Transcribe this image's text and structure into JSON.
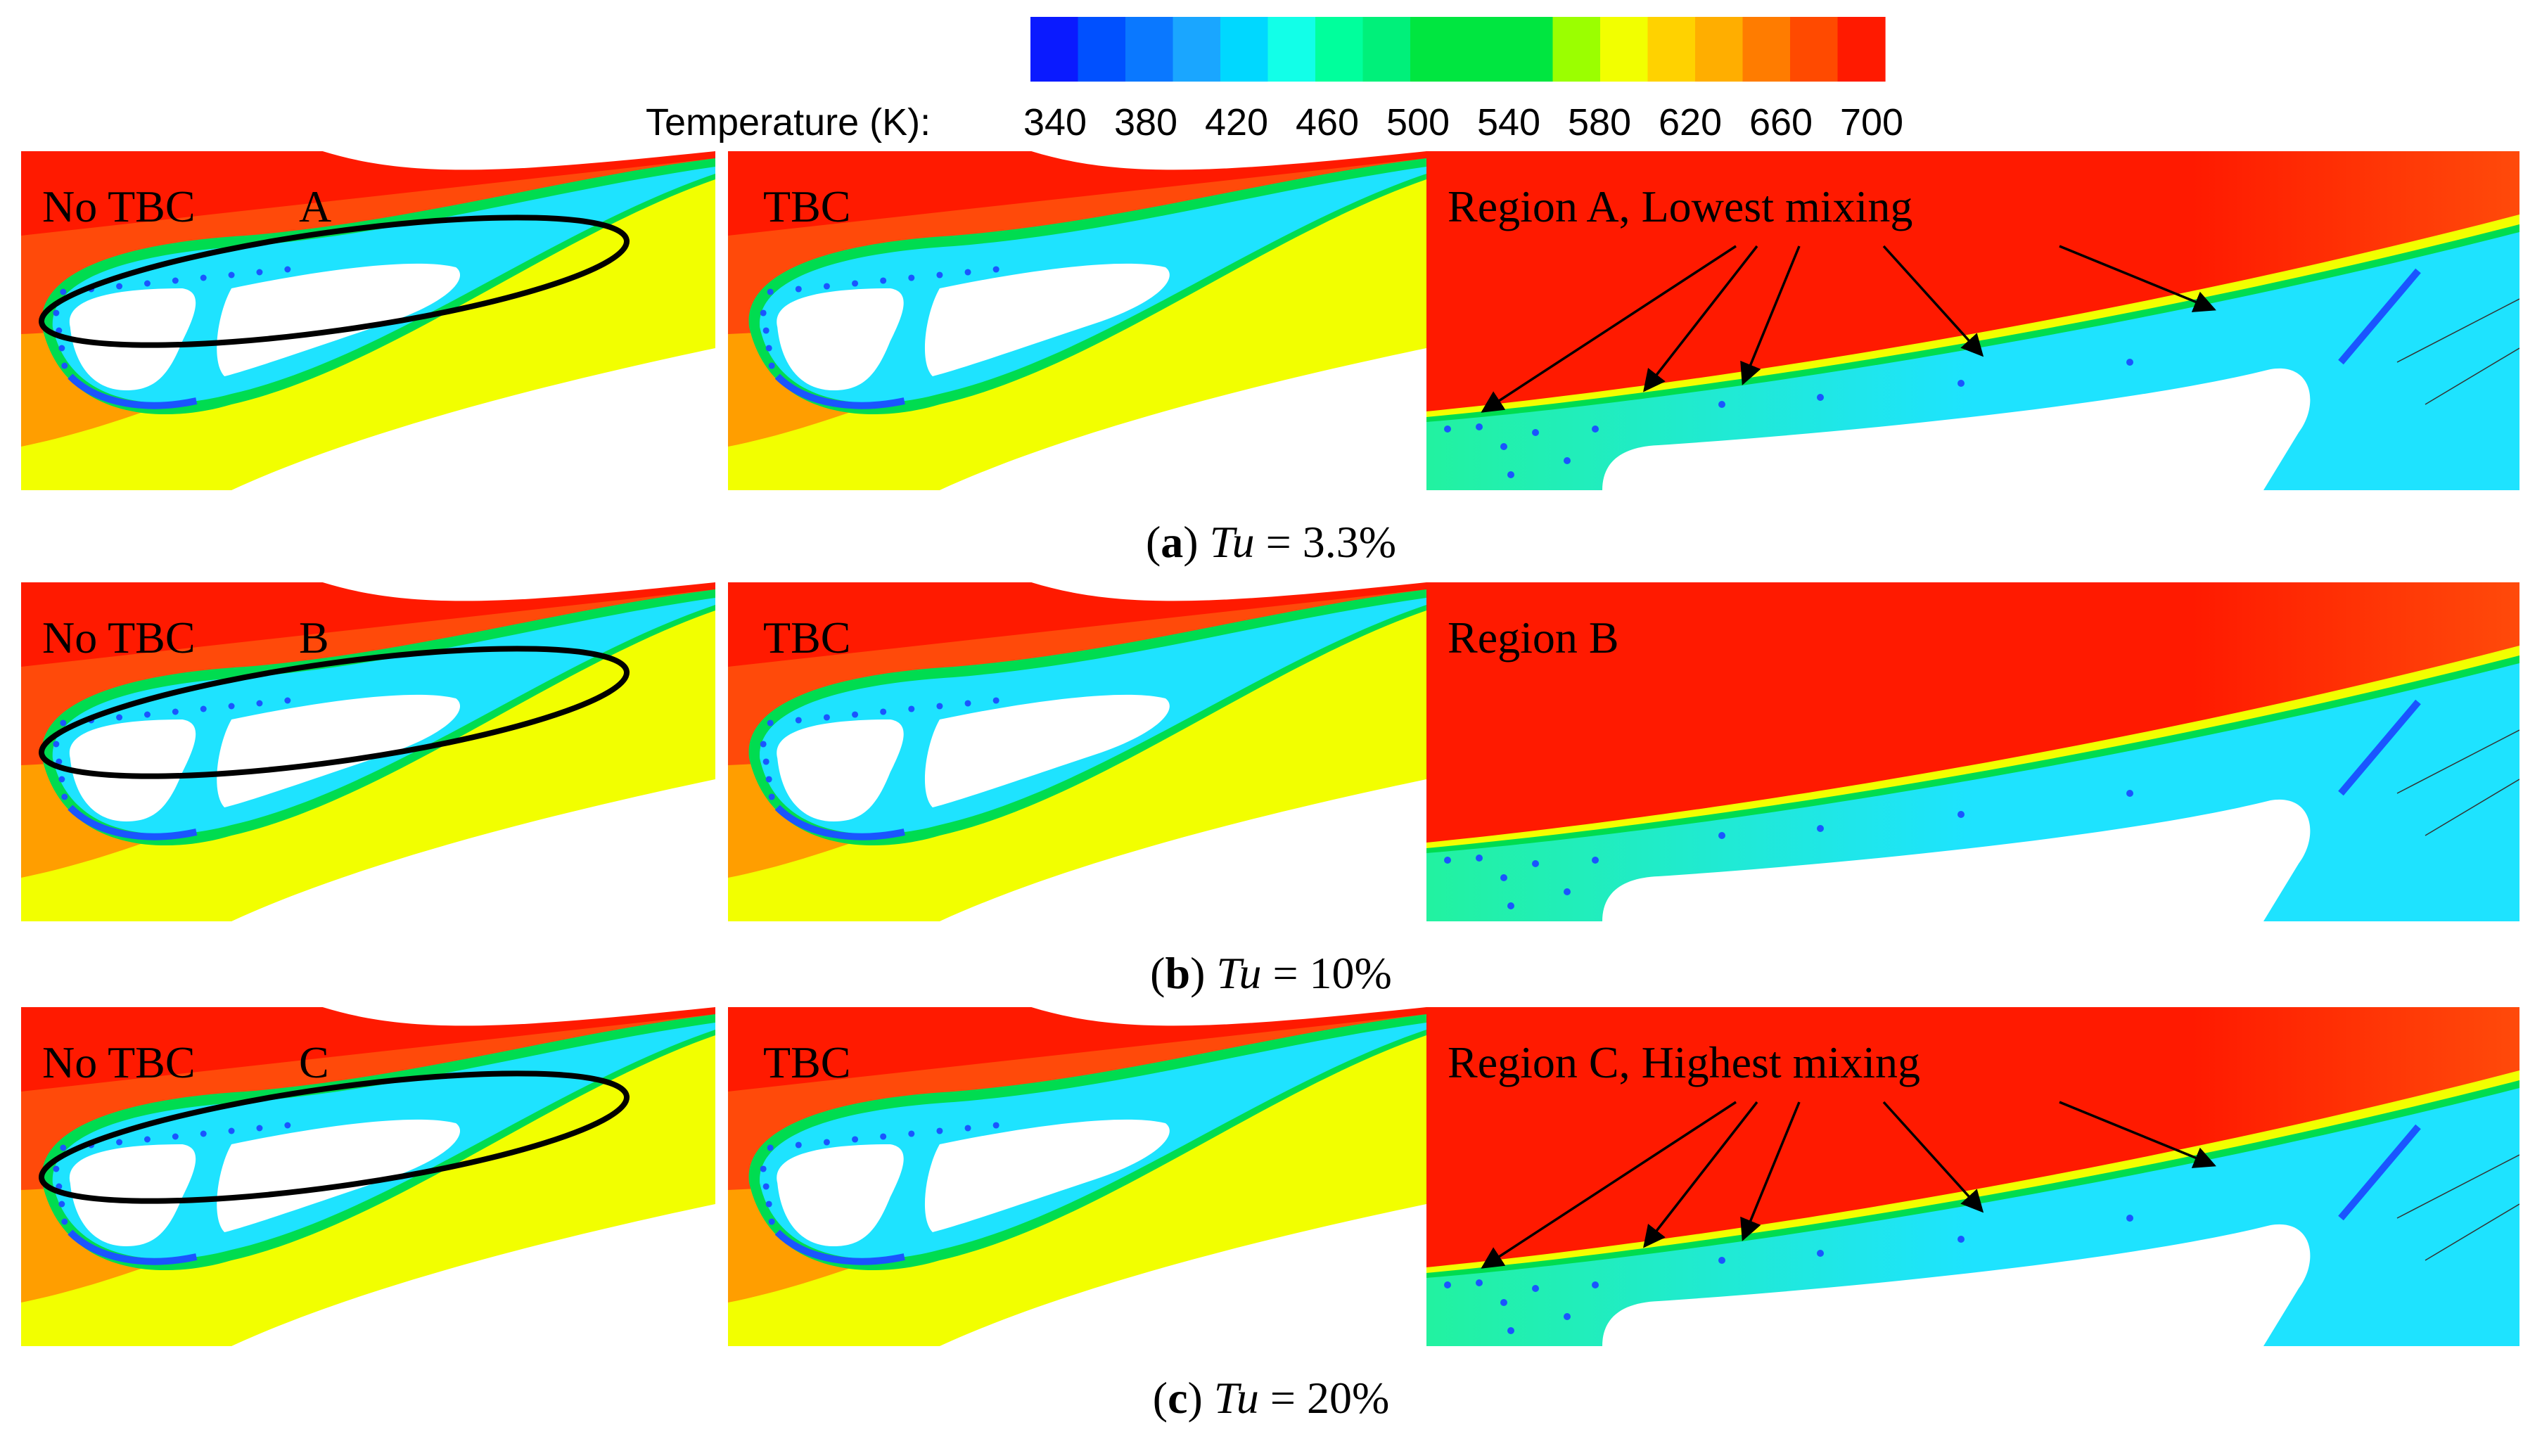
{
  "colorbar": {
    "label": "Temperature (K):",
    "ticks": [
      "340",
      "380",
      "420",
      "460",
      "500",
      "540",
      "580",
      "620",
      "660",
      "700"
    ],
    "colors": [
      "#0a1aff",
      "#0050ff",
      "#0a78ff",
      "#1aa6ff",
      "#00d8ff",
      "#12ffe8",
      "#00ff9c",
      "#00f07a",
      "#00e640",
      "#00e640",
      "#00e640",
      "#9bff00",
      "#f2ff00",
      "#ffd200",
      "#ffae00",
      "#ff7c00",
      "#ff4a00",
      "#ff1a00"
    ]
  },
  "palette": {
    "hot": "#ff1a00",
    "hot2": "#ff4a0a",
    "orange": "#ff9e00",
    "yellow": "#f2ff00",
    "green": "#00dc50",
    "cyan": "#1ee3ff",
    "blue": "#1a55ff",
    "greencyan": "#22f2a0"
  },
  "rows": [
    {
      "caption_letter": "a",
      "caption_rest": " = 3.3%",
      "tu_symbol": "Tu",
      "label_notbc": "No TBC",
      "region_letter": "A",
      "label_tbc": "TBC",
      "label_zoom": "Region A, Lowest mixing",
      "has_arrows": true
    },
    {
      "caption_letter": "b",
      "caption_rest": " = 10%",
      "tu_symbol": "Tu",
      "label_notbc": "No TBC",
      "region_letter": "B",
      "label_tbc": "TBC",
      "label_zoom": "Region B",
      "has_arrows": false
    },
    {
      "caption_letter": "c",
      "caption_rest": " = 20%",
      "tu_symbol": "Tu",
      "label_notbc": "No TBC",
      "region_letter": "C",
      "label_tbc": "TBC",
      "label_zoom": "Region C, Highest mixing",
      "has_arrows": true
    }
  ]
}
